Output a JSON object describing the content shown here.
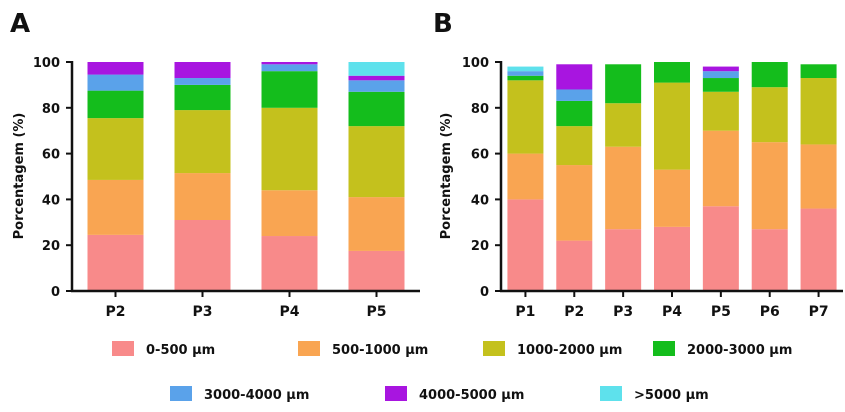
{
  "chart_data": [
    {
      "panel": "A",
      "type": "bar",
      "stacked": true,
      "ylabel": "Porcentagem (%)",
      "ylim": [
        0,
        100
      ],
      "yticks": [
        0,
        20,
        40,
        60,
        80,
        100
      ],
      "categories": [
        "P2",
        "P3",
        "P4",
        "P5"
      ],
      "series": [
        {
          "name": "0-500 µm",
          "color": "#f88a8a",
          "values": [
            24.5,
            31,
            24,
            17.5
          ]
        },
        {
          "name": "500-1000 µm",
          "color": "#f9a552",
          "values": [
            24,
            20.5,
            20,
            23.5
          ]
        },
        {
          "name": "1000-2000 µm",
          "color": "#c4c11d",
          "values": [
            27,
            27.5,
            36,
            31
          ]
        },
        {
          "name": "2000-3000 µm",
          "color": "#14bd1c",
          "values": [
            12,
            11,
            16,
            15
          ]
        },
        {
          "name": "3000-4000 µm",
          "color": "#5aa2ea",
          "values": [
            7,
            3,
            3,
            5
          ]
        },
        {
          "name": "4000-5000 µm",
          "color": "#a815e0",
          "values": [
            5.5,
            7,
            1,
            2
          ]
        },
        {
          "name": ">5000 µm",
          "color": "#5ee1ec",
          "values": [
            0,
            0,
            0,
            6
          ]
        }
      ]
    },
    {
      "panel": "B",
      "type": "bar",
      "stacked": true,
      "ylabel": "Porcentagem (%)",
      "ylim": [
        0,
        100
      ],
      "yticks": [
        0,
        20,
        40,
        60,
        80,
        100
      ],
      "categories": [
        "P1",
        "P2",
        "P3",
        "P4",
        "P5",
        "P6",
        "P7"
      ],
      "series": [
        {
          "name": "0-500 µm",
          "color": "#f88a8a",
          "values": [
            40,
            22,
            27,
            28,
            37,
            27,
            36
          ]
        },
        {
          "name": "500-1000 µm",
          "color": "#f9a552",
          "values": [
            20,
            33,
            36,
            25,
            33,
            38,
            28
          ]
        },
        {
          "name": "1000-2000 µm",
          "color": "#c4c11d",
          "values": [
            32,
            17,
            19,
            38,
            17,
            24,
            29
          ]
        },
        {
          "name": "2000-3000 µm",
          "color": "#14bd1c",
          "values": [
            2,
            11,
            17,
            9,
            6,
            11,
            6
          ]
        },
        {
          "name": "3000-4000 µm",
          "color": "#5aa2ea",
          "values": [
            2,
            5,
            0,
            0,
            3,
            0,
            0
          ]
        },
        {
          "name": "4000-5000 µm",
          "color": "#a815e0",
          "values": [
            0,
            11,
            0,
            0,
            2,
            0,
            0
          ]
        },
        {
          "name": ">5000 µm",
          "color": "#5ee1ec",
          "values": [
            2,
            0,
            0,
            0,
            0,
            0,
            0
          ]
        }
      ]
    }
  ],
  "legend": {
    "items": [
      {
        "label": "0-500 µm",
        "color": "#f88a8a"
      },
      {
        "label": "500-1000 µm",
        "color": "#f9a552"
      },
      {
        "label": "1000-2000 µm",
        "color": "#c4c11d"
      },
      {
        "label": "2000-3000 µm",
        "color": "#14bd1c"
      },
      {
        "label": "3000-4000 µm",
        "color": "#5aa2ea"
      },
      {
        "label": "4000-5000 µm",
        "color": "#a815e0"
      },
      {
        "label": ">5000 µm",
        "color": "#5ee1ec"
      }
    ]
  }
}
